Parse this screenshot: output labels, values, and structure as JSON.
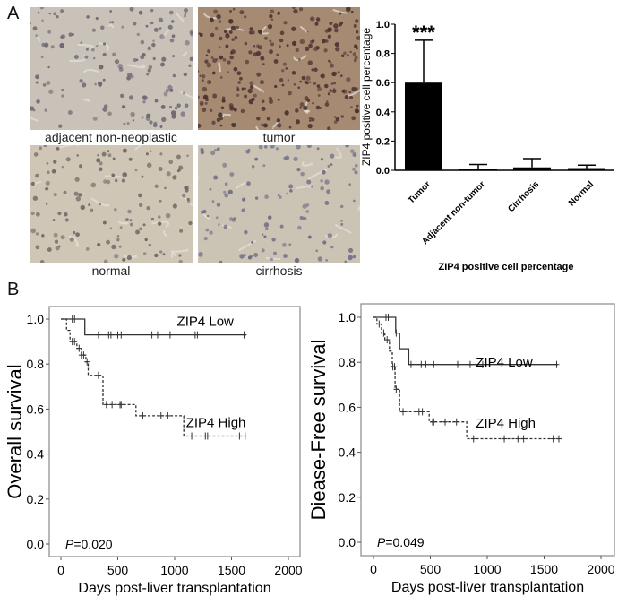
{
  "panel_a": {
    "letter": "A",
    "micrographs": [
      {
        "label": "adjacent non-neoplastic",
        "bg": "#c9c2b8",
        "nucleus": "#6d6470",
        "density": 0.55
      },
      {
        "label": "tumor",
        "bg": "#a68a72",
        "nucleus": "#4a3230",
        "density": 1.0
      },
      {
        "label": "normal",
        "bg": "#cfc6b5",
        "nucleus": "#6e6664",
        "density": 0.5
      },
      {
        "label": "cirrhosis",
        "bg": "#cbc3b3",
        "nucleus": "#6b6a86",
        "density": 0.45
      }
    ]
  },
  "panel_b": {
    "letter": "B"
  },
  "chart_data": [
    {
      "type": "bar",
      "title": "ZIP4 positive cell percentage",
      "xlabel": "ZIP4 positive cell percentage",
      "ylabel": "ZIP4 positive cell percentage",
      "categories": [
        "Tumor",
        "Adjacent non-tumor",
        "Cirrhosis",
        "Normal"
      ],
      "values": [
        0.6,
        0.01,
        0.02,
        0.015
      ],
      "error_upper": [
        0.89,
        0.04,
        0.08,
        0.035
      ],
      "annotations": [
        {
          "category": "Tumor",
          "text": "***"
        }
      ],
      "ylim": [
        0,
        1.0
      ],
      "yticks": [
        "0.0",
        "0.2",
        "0.4",
        "0.6",
        "0.8",
        "1.0"
      ],
      "bar_color": "#000000",
      "grid": false
    },
    {
      "type": "line",
      "subtype": "kaplan-meier",
      "ylabel": "Overall survival",
      "xlabel": "Days post-liver transplantation",
      "xlim": [
        0,
        2000
      ],
      "ylim": [
        0,
        1.0
      ],
      "xticks": [
        "0",
        "500",
        "1000",
        "1500",
        "2000"
      ],
      "yticks": [
        "0.0",
        "0.2",
        "0.4",
        "0.6",
        "0.8",
        "1.0"
      ],
      "p_value_label": "P",
      "p_value": "=0.020",
      "series": [
        {
          "name": "ZIP4 Low",
          "style": "solid",
          "steps": [
            [
              0,
              1.0
            ],
            [
              210,
              1.0
            ],
            [
              210,
              0.93
            ],
            [
              1630,
              0.93
            ]
          ],
          "censors": [
            [
              100,
              1.0
            ],
            [
              120,
              1.0
            ],
            [
              330,
              0.93
            ],
            [
              420,
              0.93
            ],
            [
              440,
              0.93
            ],
            [
              500,
              0.93
            ],
            [
              530,
              0.93
            ],
            [
              800,
              0.93
            ],
            [
              850,
              0.93
            ],
            [
              960,
              0.93
            ],
            [
              1180,
              0.93
            ],
            [
              1200,
              0.93
            ],
            [
              1610,
              0.93
            ]
          ]
        },
        {
          "name": "ZIP4 High",
          "style": "dashed",
          "steps": [
            [
              0,
              1.0
            ],
            [
              50,
              1.0
            ],
            [
              50,
              0.95
            ],
            [
              80,
              0.95
            ],
            [
              80,
              0.9
            ],
            [
              140,
              0.9
            ],
            [
              140,
              0.87
            ],
            [
              180,
              0.87
            ],
            [
              180,
              0.84
            ],
            [
              220,
              0.84
            ],
            [
              220,
              0.81
            ],
            [
              240,
              0.81
            ],
            [
              240,
              0.75
            ],
            [
              370,
              0.75
            ],
            [
              370,
              0.62
            ],
            [
              660,
              0.62
            ],
            [
              660,
              0.57
            ],
            [
              1080,
              0.57
            ],
            [
              1080,
              0.48
            ],
            [
              1630,
              0.48
            ]
          ],
          "censors": [
            [
              100,
              0.9
            ],
            [
              120,
              0.9
            ],
            [
              160,
              0.87
            ],
            [
              180,
              0.84
            ],
            [
              200,
              0.84
            ],
            [
              230,
              0.81
            ],
            [
              330,
              0.75
            ],
            [
              400,
              0.62
            ],
            [
              450,
              0.62
            ],
            [
              520,
              0.62
            ],
            [
              530,
              0.62
            ],
            [
              720,
              0.57
            ],
            [
              880,
              0.57
            ],
            [
              940,
              0.57
            ],
            [
              1150,
              0.48
            ],
            [
              1270,
              0.48
            ],
            [
              1290,
              0.48
            ],
            [
              1570,
              0.48
            ],
            [
              1620,
              0.48
            ]
          ]
        }
      ],
      "legend": [
        {
          "text": "ZIP4 Low",
          "x": 1020,
          "y": 0.99
        },
        {
          "text": "ZIP4 High",
          "x": 1100,
          "y": 0.54
        }
      ]
    },
    {
      "type": "line",
      "subtype": "kaplan-meier",
      "ylabel": "Diease-Free survival",
      "xlabel": "Days post-liver transplantation",
      "xlim": [
        0,
        2000
      ],
      "ylim": [
        0,
        1.0
      ],
      "xticks": [
        "0",
        "500",
        "1000",
        "1500",
        "2000"
      ],
      "yticks": [
        "0.0",
        "0.2",
        "0.4",
        "0.6",
        "0.8",
        "1.0"
      ],
      "p_value_label": "P",
      "p_value": "=0.049",
      "series": [
        {
          "name": "ZIP4 Low",
          "style": "solid",
          "steps": [
            [
              0,
              1.0
            ],
            [
              195,
              1.0
            ],
            [
              195,
              0.93
            ],
            [
              230,
              0.93
            ],
            [
              230,
              0.86
            ],
            [
              310,
              0.86
            ],
            [
              310,
              0.79
            ],
            [
              1620,
              0.79
            ]
          ],
          "censors": [
            [
              110,
              1.0
            ],
            [
              130,
              1.0
            ],
            [
              200,
              0.93
            ],
            [
              330,
              0.79
            ],
            [
              420,
              0.79
            ],
            [
              460,
              0.79
            ],
            [
              530,
              0.79
            ],
            [
              740,
              0.79
            ],
            [
              850,
              0.79
            ],
            [
              960,
              0.79
            ],
            [
              1610,
              0.79
            ]
          ]
        },
        {
          "name": "ZIP4 High",
          "style": "dashed",
          "steps": [
            [
              0,
              1.0
            ],
            [
              30,
              1.0
            ],
            [
              30,
              0.97
            ],
            [
              70,
              0.97
            ],
            [
              70,
              0.93
            ],
            [
              100,
              0.93
            ],
            [
              100,
              0.9
            ],
            [
              140,
              0.9
            ],
            [
              140,
              0.85
            ],
            [
              165,
              0.85
            ],
            [
              165,
              0.78
            ],
            [
              190,
              0.78
            ],
            [
              190,
              0.68
            ],
            [
              230,
              0.68
            ],
            [
              230,
              0.58
            ],
            [
              490,
              0.58
            ],
            [
              490,
              0.535
            ],
            [
              820,
              0.535
            ],
            [
              820,
              0.46
            ],
            [
              1660,
              0.46
            ]
          ],
          "censors": [
            [
              50,
              0.97
            ],
            [
              90,
              0.93
            ],
            [
              120,
              0.9
            ],
            [
              170,
              0.78
            ],
            [
              185,
              0.78
            ],
            [
              200,
              0.68
            ],
            [
              260,
              0.58
            ],
            [
              400,
              0.58
            ],
            [
              430,
              0.58
            ],
            [
              520,
              0.535
            ],
            [
              530,
              0.535
            ],
            [
              630,
              0.535
            ],
            [
              730,
              0.535
            ],
            [
              880,
              0.46
            ],
            [
              1150,
              0.46
            ],
            [
              1270,
              0.46
            ],
            [
              1320,
              0.46
            ],
            [
              1580,
              0.46
            ],
            [
              1630,
              0.46
            ]
          ]
        }
      ],
      "legend": [
        {
          "text": "ZIP4 Low",
          "x": 900,
          "y": 0.8
        },
        {
          "text": "ZIP4 High",
          "x": 900,
          "y": 0.53
        }
      ]
    }
  ]
}
